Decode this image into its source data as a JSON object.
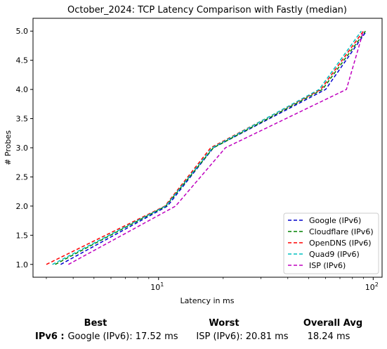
{
  "chart_data": {
    "type": "line",
    "title": "October_2024: TCP Latency Comparison with Fastly (median)",
    "xlabel": "Latency in ms",
    "ylabel": "# Probes",
    "xscale": "log",
    "xlim": [
      2.6,
      110
    ],
    "ylim": [
      0.78,
      5.22
    ],
    "x_ticks": [
      10,
      100
    ],
    "x_tick_labels": [
      "10^1",
      "10^2"
    ],
    "y_ticks": [
      1.0,
      1.5,
      2.0,
      2.5,
      3.0,
      3.5,
      4.0,
      4.5,
      5.0
    ],
    "y_tick_labels": [
      "1.0",
      "1.5",
      "2.0",
      "2.5",
      "3.0",
      "3.5",
      "4.0",
      "4.5",
      "5.0"
    ],
    "grid": false,
    "legend_position": "lower-right",
    "line_style": "dashed",
    "series": [
      {
        "name": "Google (IPv6)",
        "color": "#0000cc",
        "x": [
          3.5,
          11,
          18,
          60,
          93
        ],
        "y": [
          1,
          2,
          3,
          4,
          5
        ]
      },
      {
        "name": "Cloudflare (IPv6)",
        "color": "#008000",
        "x": [
          3.3,
          10.8,
          18,
          58,
          92
        ],
        "y": [
          1,
          2,
          3,
          4,
          5
        ]
      },
      {
        "name": "OpenDNS (IPv6)",
        "color": "#ff0000",
        "x": [
          3.0,
          10.7,
          17.5,
          57,
          90
        ],
        "y": [
          1,
          2,
          3,
          4,
          5
        ]
      },
      {
        "name": "Quad9 (IPv6)",
        "color": "#00bfbf",
        "x": [
          3.2,
          10.8,
          17.8,
          56,
          88
        ],
        "y": [
          1,
          2,
          3,
          4,
          5
        ]
      },
      {
        "name": "ISP (IPv6)",
        "color": "#bf00bf",
        "x": [
          3.8,
          12,
          20.5,
          75,
          90
        ],
        "y": [
          1,
          2,
          3,
          4,
          5
        ]
      }
    ]
  },
  "summary": {
    "best_header": "Best",
    "worst_header": "Worst",
    "avg_header": "Overall Avg",
    "row_label": "IPv6 :",
    "best_value": "Google (IPv6): 17.52 ms",
    "worst_value": "ISP (IPv6): 20.81 ms",
    "avg_value": "18.24 ms"
  }
}
